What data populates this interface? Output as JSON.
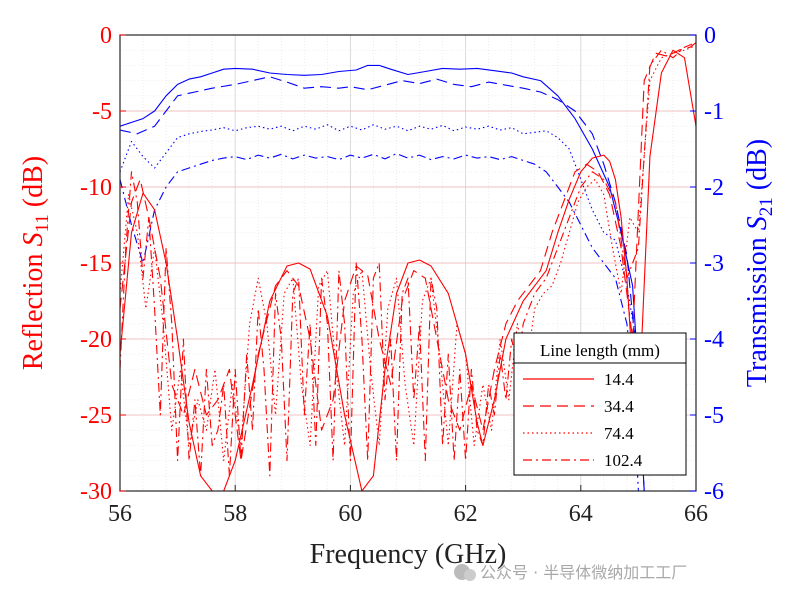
{
  "chart_data": {
    "type": "line",
    "xlabel": "Frequency (GHz)",
    "ylabel_left": {
      "main": "Reflection  ",
      "symbol": "S",
      "sub": "11",
      "unit": " (dB)"
    },
    "ylabel_right": {
      "main": "Transmission  ",
      "symbol": "S",
      "sub": "21",
      "unit": " (dB)"
    },
    "xlim": [
      56,
      66
    ],
    "ylim_left": [
      -30,
      0
    ],
    "ylim_right": [
      -6,
      0
    ],
    "x_ticks": [
      56,
      58,
      60,
      62,
      64,
      66
    ],
    "y_ticks_left": [
      0,
      -5,
      -10,
      -15,
      -20,
      -25,
      -30
    ],
    "y_ticks_right": [
      0,
      -1,
      -2,
      -3,
      -4,
      -5,
      -6
    ],
    "grid": true,
    "legend": {
      "title": "Line length (mm)",
      "placement": "lower-right",
      "entries": [
        "14.4",
        "34.4",
        "74.4",
        "102.4"
      ]
    },
    "colors": {
      "s11": "#ff0000",
      "s21": "#0000ff"
    },
    "series_s11": [
      {
        "name": "14.4",
        "dash": "solid",
        "x": [
          56.0,
          56.2,
          56.4,
          56.6,
          56.8,
          57.0,
          57.2,
          57.4,
          57.6,
          57.8,
          58.0,
          58.3,
          58.6,
          58.9,
          59.1,
          59.3,
          59.6,
          59.9,
          60.2,
          60.4,
          60.6,
          60.8,
          61.0,
          61.2,
          61.4,
          61.7,
          62.0,
          62.2,
          62.3,
          62.5,
          62.7,
          63.0,
          63.2,
          63.4,
          63.6,
          63.8,
          64.0,
          64.2,
          64.4,
          64.5,
          64.6,
          64.7,
          64.8,
          64.9,
          65.0,
          65.2,
          65.4,
          65.6,
          65.8,
          66.0
        ],
        "y": [
          -21,
          -13,
          -10.4,
          -11.5,
          -15,
          -20,
          -25.5,
          -29,
          -30,
          -30,
          -28,
          -23,
          -17.5,
          -15.2,
          -15.0,
          -15.4,
          -18.5,
          -25,
          -30,
          -29,
          -22,
          -17,
          -15.0,
          -14.8,
          -15.2,
          -17,
          -21,
          -25.5,
          -27,
          -24,
          -20,
          -17.5,
          -16.5,
          -15.5,
          -13,
          -10.8,
          -9,
          -8.1,
          -7.9,
          -8.3,
          -9.5,
          -12,
          -16,
          -22,
          -25,
          -8,
          -2.5,
          -1.0,
          -1.5,
          -6
        ]
      },
      {
        "name": "34.4",
        "dash": "long-dash",
        "x": [
          56.0,
          56.2,
          56.35,
          56.5,
          56.7,
          56.9,
          57.1,
          57.3,
          57.5,
          57.7,
          57.9,
          58.1,
          58.4,
          58.7,
          58.9,
          59.1,
          59.3,
          59.5,
          59.7,
          59.9,
          60.1,
          60.3,
          60.5,
          60.7,
          60.9,
          61.1,
          61.3,
          61.5,
          61.7,
          61.9,
          62.1,
          62.3,
          62.5,
          62.7,
          62.9,
          63.1,
          63.3,
          63.5,
          63.7,
          63.9,
          64.1,
          64.3,
          64.5,
          64.7,
          64.9,
          65.1,
          65.3,
          65.5,
          65.7,
          65.9,
          66.0
        ],
        "y": [
          -18,
          -11,
          -9.5,
          -12,
          -16,
          -23,
          -25,
          -22,
          -25,
          -24,
          -22,
          -28,
          -21,
          -16.5,
          -15.5,
          -16.5,
          -20,
          -26,
          -24,
          -17.5,
          -15.2,
          -15.8,
          -20,
          -23,
          -17.5,
          -15.5,
          -16,
          -20,
          -24,
          -26,
          -23,
          -26,
          -22,
          -19,
          -17.5,
          -16.5,
          -15.5,
          -13,
          -11,
          -9,
          -8.5,
          -9,
          -10.5,
          -14,
          -20,
          -3,
          -1.2,
          -1.4,
          -1.0,
          -0.8,
          -0.5
        ]
      },
      {
        "name": "74.4",
        "dash": "dotted",
        "x": [
          56.0,
          56.15,
          56.3,
          56.45,
          56.6,
          56.75,
          56.9,
          57.05,
          57.2,
          57.35,
          57.5,
          57.65,
          57.8,
          57.95,
          58.1,
          58.25,
          58.4,
          58.55,
          58.7,
          58.85,
          59.0,
          59.15,
          59.3,
          59.45,
          59.6,
          59.75,
          59.9,
          60.05,
          60.2,
          60.35,
          60.5,
          60.65,
          60.8,
          60.95,
          61.1,
          61.25,
          61.4,
          61.55,
          61.7,
          61.85,
          62.0,
          62.15,
          62.3,
          62.45,
          62.6,
          62.75,
          62.9,
          63.05,
          63.2,
          63.35,
          63.5,
          63.65,
          63.8,
          63.95,
          64.1,
          64.25,
          64.4,
          64.55,
          64.7,
          64.85,
          65.0,
          65.2,
          65.4,
          65.6,
          65.8,
          66.0
        ],
        "y": [
          -17,
          -10.5,
          -13,
          -18,
          -14,
          -19,
          -26,
          -22,
          -27,
          -24,
          -26,
          -22,
          -28,
          -23,
          -27,
          -19,
          -16,
          -19,
          -25,
          -17,
          -16,
          -23,
          -27,
          -16.5,
          -15.5,
          -22,
          -27,
          -17,
          -15.5,
          -22,
          -27,
          -18,
          -16,
          -23,
          -27,
          -17.5,
          -16,
          -21,
          -27,
          -19,
          -21,
          -27,
          -23,
          -26,
          -20,
          -24,
          -19,
          -22,
          -18,
          -17,
          -16.5,
          -15,
          -13,
          -11,
          -10,
          -9.5,
          -10.5,
          -14,
          -17,
          -12,
          -13,
          -3,
          -1.5,
          -1.2,
          -1.0,
          -0.7
        ]
      },
      {
        "name": "102.4",
        "dash": "dash-dot",
        "x": [
          56.0,
          56.1,
          56.2,
          56.3,
          56.4,
          56.5,
          56.6,
          56.7,
          56.8,
          56.9,
          57.0,
          57.1,
          57.2,
          57.3,
          57.4,
          57.5,
          57.6,
          57.7,
          57.8,
          57.9,
          58.0,
          58.1,
          58.2,
          58.3,
          58.4,
          58.5,
          58.6,
          58.7,
          58.8,
          58.9,
          59.0,
          59.1,
          59.2,
          59.3,
          59.4,
          59.5,
          59.6,
          59.7,
          59.8,
          59.9,
          60.0,
          60.1,
          60.2,
          60.3,
          60.4,
          60.5,
          60.6,
          60.7,
          60.8,
          60.9,
          61.0,
          61.1,
          61.2,
          61.3,
          61.4,
          61.5,
          61.6,
          61.7,
          61.8,
          61.9,
          62.0,
          62.1,
          62.2,
          62.3,
          62.4,
          62.5,
          62.6,
          62.7,
          62.8,
          62.9,
          63.0,
          63.2,
          63.4,
          63.6,
          63.8,
          64.0,
          64.2,
          64.4,
          64.6,
          64.8,
          65.0,
          65.2,
          65.4,
          65.6,
          65.8,
          66.0
        ],
        "y": [
          -22,
          -14,
          -9,
          -11,
          -16,
          -12,
          -18,
          -25,
          -14,
          -19,
          -28,
          -20,
          -28,
          -24,
          -29,
          -22,
          -27,
          -26,
          -23,
          -29,
          -22,
          -28,
          -21,
          -26,
          -18,
          -22,
          -29,
          -17,
          -20,
          -28,
          -17,
          -16,
          -25,
          -19,
          -27,
          -16,
          -19,
          -28,
          -15.5,
          -19,
          -28,
          -15,
          -20,
          -28,
          -16,
          -15,
          -24,
          -20,
          -28,
          -17,
          -16,
          -24,
          -19,
          -28,
          -16,
          -18,
          -27,
          -21,
          -28,
          -22,
          -28,
          -22,
          -26,
          -27,
          -23,
          -25,
          -21,
          -24,
          -20,
          -22,
          -19,
          -17,
          -16,
          -14,
          -12,
          -10,
          -9,
          -9.5,
          -11,
          -16,
          -14,
          -2,
          -1.0,
          -1.5,
          -0.8,
          -0.5
        ]
      }
    ],
    "series_s21": [
      {
        "name": "14.4",
        "dash": "solid",
        "x": [
          56.0,
          56.2,
          56.4,
          56.6,
          56.8,
          57.0,
          57.2,
          57.4,
          57.6,
          57.8,
          58.0,
          58.3,
          58.6,
          58.9,
          59.2,
          59.5,
          59.8,
          60.1,
          60.3,
          60.5,
          60.7,
          61.0,
          61.3,
          61.6,
          61.9,
          62.2,
          62.5,
          62.8,
          63.0,
          63.3,
          63.6,
          63.9,
          64.2,
          64.5,
          64.7,
          64.9,
          65.0,
          65.1
        ],
        "y": [
          -1.2,
          -1.15,
          -1.1,
          -1.0,
          -0.8,
          -0.65,
          -0.58,
          -0.55,
          -0.5,
          -0.45,
          -0.44,
          -0.45,
          -0.5,
          -0.52,
          -0.53,
          -0.52,
          -0.48,
          -0.46,
          -0.4,
          -0.4,
          -0.45,
          -0.52,
          -0.48,
          -0.44,
          -0.45,
          -0.44,
          -0.47,
          -0.5,
          -0.55,
          -0.6,
          -0.8,
          -1.1,
          -1.5,
          -2.0,
          -2.6,
          -3.3,
          -4.5,
          -6
        ]
      },
      {
        "name": "34.4",
        "dash": "long-dash",
        "x": [
          56.0,
          56.3,
          56.6,
          56.8,
          57.0,
          57.3,
          57.6,
          58.0,
          58.3,
          58.6,
          58.9,
          59.2,
          59.5,
          59.8,
          60.0,
          60.3,
          60.6,
          60.9,
          61.2,
          61.5,
          61.8,
          62.1,
          62.4,
          62.7,
          63.0,
          63.3,
          63.6,
          63.9,
          64.2,
          64.4,
          64.6,
          64.8,
          65.0,
          65.1
        ],
        "y": [
          -1.25,
          -1.3,
          -1.2,
          -1.0,
          -0.8,
          -0.75,
          -0.7,
          -0.65,
          -0.6,
          -0.55,
          -0.62,
          -0.7,
          -0.68,
          -0.7,
          -0.68,
          -0.72,
          -0.66,
          -0.6,
          -0.64,
          -0.58,
          -0.65,
          -0.68,
          -0.62,
          -0.66,
          -0.7,
          -0.75,
          -0.85,
          -1.0,
          -1.3,
          -1.7,
          -2.2,
          -2.9,
          -4.5,
          -6
        ]
      },
      {
        "name": "74.4",
        "dash": "dotted",
        "x": [
          56.0,
          56.2,
          56.4,
          56.6,
          56.8,
          57.0,
          57.2,
          57.4,
          57.6,
          57.8,
          58.0,
          58.2,
          58.4,
          58.6,
          58.8,
          59.0,
          59.2,
          59.4,
          59.6,
          59.8,
          60.0,
          60.2,
          60.4,
          60.6,
          60.8,
          61.0,
          61.2,
          61.4,
          61.6,
          61.8,
          62.0,
          62.2,
          62.4,
          62.6,
          62.8,
          63.0,
          63.2,
          63.4,
          63.6,
          63.8,
          64.0,
          64.2,
          64.4,
          64.6,
          64.8,
          65.0
        ],
        "y": [
          -1.8,
          -1.4,
          -1.6,
          -1.75,
          -1.55,
          -1.35,
          -1.3,
          -1.27,
          -1.25,
          -1.22,
          -1.26,
          -1.22,
          -1.2,
          -1.24,
          -1.2,
          -1.26,
          -1.2,
          -1.24,
          -1.18,
          -1.26,
          -1.2,
          -1.25,
          -1.18,
          -1.24,
          -1.2,
          -1.26,
          -1.2,
          -1.24,
          -1.19,
          -1.26,
          -1.21,
          -1.24,
          -1.2,
          -1.25,
          -1.22,
          -1.3,
          -1.28,
          -1.26,
          -1.35,
          -1.5,
          -1.9,
          -2.3,
          -2.6,
          -2.7,
          -3.3,
          -4.2
        ]
      },
      {
        "name": "102.4",
        "dash": "dash-dot",
        "x": [
          56.0,
          56.2,
          56.4,
          56.6,
          56.8,
          57.0,
          57.2,
          57.4,
          57.6,
          57.8,
          58.0,
          58.2,
          58.4,
          58.6,
          58.8,
          59.0,
          59.2,
          59.4,
          59.6,
          59.8,
          60.0,
          60.2,
          60.4,
          60.6,
          60.8,
          61.0,
          61.2,
          61.4,
          61.6,
          61.8,
          62.0,
          62.2,
          62.4,
          62.6,
          62.8,
          63.0,
          63.2,
          63.4,
          63.6,
          63.8,
          64.0,
          64.2,
          64.4,
          64.6,
          64.8,
          64.9,
          65.0
        ],
        "y": [
          -1.9,
          -2.5,
          -3.0,
          -2.3,
          -2.0,
          -1.8,
          -1.75,
          -1.7,
          -1.65,
          -1.62,
          -1.6,
          -1.64,
          -1.58,
          -1.62,
          -1.57,
          -1.63,
          -1.58,
          -1.62,
          -1.6,
          -1.64,
          -1.58,
          -1.62,
          -1.57,
          -1.63,
          -1.56,
          -1.62,
          -1.58,
          -1.64,
          -1.6,
          -1.63,
          -1.58,
          -1.62,
          -1.6,
          -1.64,
          -1.6,
          -1.65,
          -1.7,
          -1.8,
          -2.0,
          -2.2,
          -2.5,
          -2.8,
          -3.0,
          -3.2,
          -3.8,
          -4.5,
          -6
        ]
      }
    ]
  }
}
